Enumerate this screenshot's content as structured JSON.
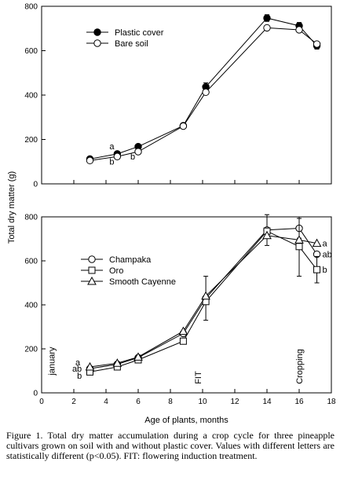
{
  "chart_data": [
    {
      "type": "line",
      "ylabel": "",
      "xlim": [
        0,
        18
      ],
      "ylim": [
        0,
        800
      ],
      "yticks": [
        0,
        200,
        400,
        600,
        800
      ],
      "xticks": [
        0,
        2,
        4,
        6,
        8,
        10,
        12,
        14,
        16,
        18
      ],
      "x_tick_labels_shown": false,
      "legend_position": "upper-left",
      "series": [
        {
          "name": "Plastic cover",
          "marker": "filled-circle",
          "points": [
            {
              "x": 3,
              "y": 112
            },
            {
              "x": 4.7,
              "y": 135,
              "label": "a"
            },
            {
              "x": 6,
              "y": 168
            },
            {
              "x": 8.8,
              "y": 262
            },
            {
              "x": 10.2,
              "y": 437,
              "error": 18
            },
            {
              "x": 14,
              "y": 747,
              "error": 15
            },
            {
              "x": 16,
              "y": 712,
              "error": 15
            },
            {
              "x": 17.1,
              "y": 622,
              "error": 15
            }
          ]
        },
        {
          "name": "Bare soil",
          "marker": "open-circle",
          "points": [
            {
              "x": 3,
              "y": 105
            },
            {
              "x": 4.7,
              "y": 123,
              "label": "b"
            },
            {
              "x": 6,
              "y": 145,
              "label": "b"
            },
            {
              "x": 8.8,
              "y": 260
            },
            {
              "x": 10.2,
              "y": 413
            },
            {
              "x": 14,
              "y": 703
            },
            {
              "x": 16,
              "y": 694
            },
            {
              "x": 17.1,
              "y": 630
            }
          ]
        }
      ],
      "annotations": [
        {
          "text": "a",
          "x": 3.5,
          "y": 135
        },
        {
          "text": "b",
          "x": 4.0,
          "y": 92
        },
        {
          "text": "b",
          "x": 5.4,
          "y": 115
        }
      ]
    },
    {
      "type": "line",
      "xlabel": "Age of plants, months",
      "ylabel": "",
      "xlim": [
        0,
        18
      ],
      "ylim": [
        0,
        800
      ],
      "yticks": [
        0,
        200,
        400,
        600,
        800
      ],
      "xticks": [
        0,
        2,
        4,
        6,
        8,
        10,
        12,
        14,
        16,
        18
      ],
      "legend_position": "center-left",
      "series": [
        {
          "name": "Champaka",
          "marker": "open-circle",
          "points": [
            {
              "x": 3,
              "y": 110
            },
            {
              "x": 4.7,
              "y": 130
            },
            {
              "x": 6,
              "y": 160
            },
            {
              "x": 8.8,
              "y": 270
            },
            {
              "x": 10.2,
              "y": 430,
              "error": 100
            },
            {
              "x": 14,
              "y": 740,
              "error": 70
            },
            {
              "x": 16,
              "y": 748,
              "error": 45
            },
            {
              "x": 17.1,
              "y": 630,
              "label": "ab"
            }
          ]
        },
        {
          "name": "Oro",
          "marker": "open-square",
          "points": [
            {
              "x": 3,
              "y": 95
            },
            {
              "x": 4.7,
              "y": 118
            },
            {
              "x": 6,
              "y": 150
            },
            {
              "x": 8.8,
              "y": 235
            },
            {
              "x": 10.2,
              "y": 415
            },
            {
              "x": 14,
              "y": 735
            },
            {
              "x": 16,
              "y": 665,
              "error": 135
            },
            {
              "x": 17.1,
              "y": 560,
              "label": "b",
              "error": 60
            }
          ]
        },
        {
          "name": "Smooth Cayenne",
          "marker": "open-triangle",
          "points": [
            {
              "x": 3,
              "y": 118
            },
            {
              "x": 4.7,
              "y": 135
            },
            {
              "x": 6,
              "y": 163
            },
            {
              "x": 8.8,
              "y": 280
            },
            {
              "x": 10.2,
              "y": 440
            },
            {
              "x": 14,
              "y": 715
            },
            {
              "x": 16,
              "y": 695
            },
            {
              "x": 17.1,
              "y": 680,
              "label": "a"
            }
          ]
        }
      ],
      "annotations": [
        {
          "text": "a",
          "x": 2.1,
          "y": 125
        },
        {
          "text": "ab",
          "x": 1.9,
          "y": 97
        },
        {
          "text": "b",
          "x": 2.2,
          "y": 65
        },
        {
          "text": "january",
          "x": 0.8,
          "y": 80,
          "rotated": true
        },
        {
          "text": "FIT",
          "x": 9.9,
          "y": 40,
          "rotated": true
        },
        {
          "text": "Cropping",
          "x": 16.2,
          "y": 40,
          "rotated": true
        }
      ]
    }
  ],
  "shared_ylabel": "Total dry matter (g)",
  "caption": "Figure 1. Total dry matter accumulation during a crop cycle for three pineapple cultivars grown on soil with and without plastic cover. Values with different letters are statistically different (p<0.05). FIT: flowering induction treatment."
}
